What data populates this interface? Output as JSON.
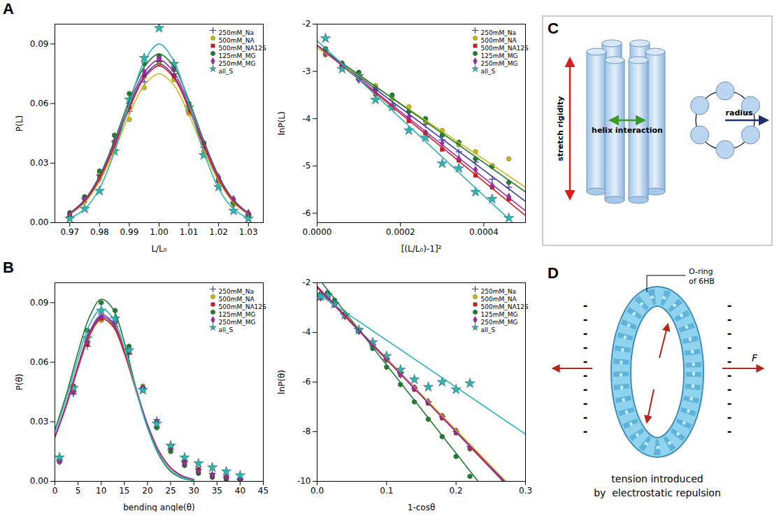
{
  "chart_data": [
    {
      "panel": "A",
      "type": "scatter",
      "x_label": "L/L₀",
      "y_label": "P(L)",
      "xlim": [
        0.965,
        1.035
      ],
      "xticks": [
        0.97,
        0.98,
        0.99,
        {
          "value": 1,
          "label": "1.00"
        },
        1.01,
        1.02,
        1.03
      ],
      "ylim": [
        0,
        0.1
      ],
      "yticks": [
        {
          "value": 0,
          "label": "0.00"
        },
        0.03,
        0.06,
        0.09
      ],
      "legend": "top-right",
      "x": [
        0.97,
        0.975,
        0.98,
        0.985,
        0.99,
        0.995,
        1,
        1.005,
        1.01,
        1.015,
        1.02,
        1.025,
        1.03
      ],
      "fit_x": [
        0.97,
        0.975,
        0.98,
        0.985,
        0.99,
        0.995,
        1,
        1.005,
        1.01,
        1.015,
        1.02,
        1.025,
        1.03
      ],
      "series": [
        {
          "name": "250mM_Na",
          "color": "#3b3bb0",
          "marker": "plus",
          "values": [
            0.003,
            0.012,
            0.024,
            0.041,
            0.056,
            0.071,
            0.081,
            0.075,
            0.057,
            0.038,
            0.021,
            0.01,
            0.004
          ],
          "fit_values": [
            0.0045,
            0.0108,
            0.0222,
            0.039,
            0.058,
            0.0738,
            0.08,
            0.0738,
            0.058,
            0.039,
            0.0222,
            0.0108,
            0.0045
          ]
        },
        {
          "name": "500mM_NA",
          "color": "#c9bd10",
          "marker": "circle",
          "values": [
            0.004,
            0.013,
            0.025,
            0.038,
            0.052,
            0.068,
            0.08,
            0.072,
            0.055,
            0.036,
            0.022,
            0.009,
            0.003
          ],
          "fit_values": [
            0.0042,
            0.0101,
            0.0209,
            0.0365,
            0.0545,
            0.0692,
            0.075,
            0.0692,
            0.0545,
            0.0365,
            0.0209,
            0.0101,
            0.0042
          ]
        },
        {
          "name": "500mM_NA12S",
          "color": "#e3141c",
          "marker": "square",
          "values": [
            0.003,
            0.011,
            0.023,
            0.04,
            0.058,
            0.074,
            0.082,
            0.074,
            0.056,
            0.04,
            0.021,
            0.011,
            0.004
          ],
          "fit_values": [
            0.0044,
            0.0107,
            0.022,
            0.0385,
            0.0574,
            0.0729,
            0.079,
            0.0729,
            0.0574,
            0.0385,
            0.022,
            0.0107,
            0.0044
          ]
        },
        {
          "name": "125mM_MG",
          "color": "#1e7d32",
          "marker": "hexagon",
          "values": [
            0.005,
            0.013,
            0.026,
            0.044,
            0.065,
            0.08,
            0.084,
            0.077,
            0.06,
            0.04,
            0.022,
            0.01,
            0.004
          ],
          "fit_values": [
            0.0048,
            0.0115,
            0.0236,
            0.0414,
            0.0617,
            0.0785,
            0.085,
            0.0785,
            0.0617,
            0.0414,
            0.0236,
            0.0115,
            0.0048
          ]
        },
        {
          "name": "250mM_MG",
          "color": "#9b2fa8",
          "marker": "diamond",
          "values": [
            0.004,
            0.012,
            0.022,
            0.041,
            0.06,
            0.076,
            0.083,
            0.078,
            0.058,
            0.04,
            0.023,
            0.012,
            0.005
          ],
          "fit_values": [
            0.0046,
            0.0111,
            0.0228,
            0.0399,
            0.0595,
            0.0757,
            0.082,
            0.0757,
            0.0595,
            0.0399,
            0.0228,
            0.0111,
            0.0046
          ]
        },
        {
          "name": "all_S",
          "color": "#2bb5b5",
          "marker": "star",
          "values": [
            0.002,
            0.007,
            0.016,
            0.036,
            0.062,
            0.083,
            0.098,
            0.08,
            0.058,
            0.034,
            0.018,
            0.006,
            0.002
          ],
          "fit_values": [
            0.0022,
            0.0068,
            0.0172,
            0.0356,
            0.0596,
            0.0812,
            0.09,
            0.0812,
            0.0596,
            0.0356,
            0.0172,
            0.0068,
            0.0022
          ]
        }
      ]
    },
    {
      "panel": "A",
      "type": "scatter",
      "x_label": "[(L/L₀)-1]²",
      "y_label": "lnP(L)",
      "xlim": [
        0,
        0.0005
      ],
      "xticks": [
        {
          "value": 0,
          "label": "0.0000"
        },
        {
          "value": 0.0002,
          "label": "0.0002"
        },
        {
          "value": 0.0004,
          "label": "0.0004"
        }
      ],
      "ylim": [
        -6.2,
        -2
      ],
      "yticks": [
        -2,
        -3,
        -4,
        -5,
        -6
      ],
      "legend": "top-right",
      "x": [
        2e-05,
        6e-05,
        0.0001,
        0.00014,
        0.00018,
        0.00022,
        0.00026,
        0.0003,
        0.00034,
        0.00038,
        0.00042,
        0.00046
      ],
      "fit_x": [
        0,
        0.0005
      ],
      "series": [
        {
          "name": "250mM_Na",
          "color": "#3b3bb0",
          "marker": "plus",
          "values": [
            -2.55,
            -2.88,
            -3.08,
            -3.4,
            -3.6,
            -3.95,
            -4.12,
            -4.45,
            -4.7,
            -4.92,
            -5.28,
            -5.45
          ],
          "fit_values": [
            -2.45,
            -5.75
          ]
        },
        {
          "name": "500mM_NA",
          "color": "#c9bd10",
          "marker": "circle",
          "values": [
            -2.65,
            -2.82,
            -3.12,
            -3.3,
            -3.58,
            -3.75,
            -4.06,
            -4.25,
            -4.55,
            -4.7,
            -5.02,
            -4.85
          ],
          "fit_values": [
            -2.5,
            -5.45
          ]
        },
        {
          "name": "500mM_NA12S",
          "color": "#e3141c",
          "marker": "square",
          "values": [
            -2.6,
            -2.9,
            -3.15,
            -3.48,
            -3.72,
            -4.05,
            -4.3,
            -4.65,
            -4.88,
            -5.2,
            -5.45,
            -5.7
          ],
          "fit_values": [
            -2.45,
            -6.05
          ]
        },
        {
          "name": "125mM_MG",
          "color": "#1e7d32",
          "marker": "hexagon",
          "values": [
            -2.52,
            -2.85,
            -3.02,
            -3.35,
            -3.5,
            -3.85,
            -4.0,
            -4.35,
            -4.5,
            -4.85,
            -5.0,
            -5.35
          ],
          "fit_values": [
            -2.45,
            -5.55
          ]
        },
        {
          "name": "250mM_MG",
          "color": "#9b2fa8",
          "marker": "diamond",
          "values": [
            -2.62,
            -2.85,
            -3.18,
            -3.4,
            -3.75,
            -3.97,
            -4.3,
            -4.52,
            -4.85,
            -5.08,
            -5.42,
            -5.65
          ],
          "fit_values": [
            -2.45,
            -5.95
          ]
        },
        {
          "name": "all_S",
          "color": "#2bb5b5",
          "marker": "star",
          "values": [
            -2.3,
            -2.95,
            -3.1,
            -3.6,
            -3.75,
            -4.25,
            -4.4,
            -4.95,
            -5.05,
            -5.55,
            -5.7,
            -6.1
          ],
          "fit_values": [
            -2.35,
            -6.45
          ]
        }
      ]
    },
    {
      "panel": "B",
      "type": "scatter",
      "x_label": "bending angle(θ)",
      "y_label": "P(θ)",
      "xlim": [
        0,
        45
      ],
      "xticks": [
        0,
        5,
        10,
        15,
        20,
        25,
        30,
        35,
        40,
        45
      ],
      "ylim": [
        0,
        0.1
      ],
      "yticks": [
        {
          "value": 0,
          "label": "0.00"
        },
        0.03,
        0.06,
        0.09
      ],
      "legend": "top-right",
      "x": [
        1,
        4,
        7,
        10,
        13,
        16,
        19,
        22,
        25,
        28,
        31,
        34,
        37,
        40
      ],
      "fit_x": [
        0,
        2.5,
        5,
        7.5,
        10,
        12.5,
        15,
        17.5,
        20,
        22.5,
        25,
        27.5,
        30
      ],
      "series": [
        {
          "name": "250mM_Na",
          "color": "#3b3bb0",
          "marker": "plus",
          "values": [
            0.011,
            0.044,
            0.068,
            0.082,
            0.078,
            0.064,
            0.047,
            0.031,
            0.018,
            0.01,
            0.006,
            0.004,
            0.002,
            0.001
          ],
          "fit_values": [
            0.0223,
            0.0388,
            0.0579,
            0.0745,
            0.0828,
            0.0792,
            0.0652,
            0.0463,
            0.0284,
            0.0149,
            0.0068,
            0.0027,
            0.0009
          ]
        },
        {
          "name": "500mM_NA",
          "color": "#c9bd10",
          "marker": "circle",
          "values": [
            0.01,
            0.046,
            0.07,
            0.081,
            0.079,
            0.066,
            0.048,
            0.03,
            0.017,
            0.009,
            0.005,
            0.003,
            0.002,
            0.001
          ],
          "fit_values": [
            0.0221,
            0.0383,
            0.0572,
            0.0736,
            0.0818,
            0.0782,
            0.0645,
            0.0458,
            0.028,
            0.0148,
            0.0067,
            0.0026,
            0.0009
          ]
        },
        {
          "name": "500mM_NA12S",
          "color": "#e3141c",
          "marker": "square",
          "values": [
            0.01,
            0.045,
            0.069,
            0.082,
            0.08,
            0.065,
            0.047,
            0.03,
            0.017,
            0.01,
            0.006,
            0.003,
            0.002,
            0.001
          ],
          "fit_values": [
            0.0221,
            0.0383,
            0.0572,
            0.0736,
            0.0818,
            0.0782,
            0.0645,
            0.0458,
            0.028,
            0.0148,
            0.0067,
            0.0026,
            0.0009
          ]
        },
        {
          "name": "125mM_MG",
          "color": "#1e7d32",
          "marker": "hexagon",
          "values": [
            0.011,
            0.048,
            0.076,
            0.09,
            0.086,
            0.068,
            0.046,
            0.027,
            0.015,
            0.008,
            0.004,
            0.002,
            0.001,
            0.0005
          ],
          "fit_values": [
            0.026,
            0.044,
            0.065,
            0.083,
            0.0917,
            0.087,
            0.07,
            0.047,
            0.027,
            0.013,
            0.005,
            0.0016,
            0.0004
          ]
        },
        {
          "name": "250mM_MG",
          "color": "#9b2fa8",
          "marker": "diamond",
          "values": [
            0.01,
            0.045,
            0.07,
            0.083,
            0.081,
            0.066,
            0.047,
            0.03,
            0.017,
            0.009,
            0.005,
            0.003,
            0.002,
            0.001
          ],
          "fit_values": [
            0.0226,
            0.0392,
            0.0586,
            0.0754,
            0.0837,
            0.0801,
            0.066,
            0.0469,
            0.0287,
            0.0151,
            0.0069,
            0.0027,
            0.0009
          ]
        },
        {
          "name": "all_S",
          "color": "#2bb5b5",
          "marker": "star",
          "values": [
            0.012,
            0.047,
            0.072,
            0.086,
            0.082,
            0.066,
            0.046,
            0.029,
            0.018,
            0.012,
            0.009,
            0.007,
            0.005,
            0.003
          ],
          "fit_values": [
            0.025,
            0.042,
            0.062,
            0.079,
            0.0868,
            0.0825,
            0.067,
            0.046,
            0.027,
            0.0135,
            0.0055,
            0.0019,
            0.0005
          ]
        }
      ]
    },
    {
      "panel": "B",
      "type": "scatter",
      "x_label": "1-cosθ",
      "y_label": "lnP(θ)",
      "xlim": [
        0,
        0.3
      ],
      "xticks": [
        {
          "value": 0,
          "label": "0.0"
        },
        0.1,
        0.2,
        0.3
      ],
      "ylim": [
        -10,
        -2
      ],
      "yticks": [
        -2,
        -4,
        -6,
        -8,
        -10
      ],
      "legend": "top-right",
      "x": [
        0.005,
        0.015,
        0.025,
        0.04,
        0.06,
        0.08,
        0.1,
        0.12,
        0.14,
        0.16,
        0.18,
        0.2,
        0.22
      ],
      "fit_x": [
        0,
        0.3
      ],
      "series": [
        {
          "name": "250mM_Na",
          "color": "#3b3bb0",
          "marker": "plus",
          "values": [
            -2.55,
            -2.55,
            -2.85,
            -3.3,
            -3.95,
            -4.5,
            -5.05,
            -5.6,
            -6.25,
            -6.8,
            -7.4,
            -8.0,
            -8.6
          ],
          "fit_values": [
            -2.15,
            -10.87
          ]
        },
        {
          "name": "500mM_NA",
          "color": "#c9bd10",
          "marker": "circle",
          "values": [
            -2.6,
            -2.5,
            -2.85,
            -3.35,
            -3.9,
            -4.45,
            -5.1,
            -5.65,
            -6.2,
            -6.85,
            -7.35,
            -7.95,
            -8.7
          ],
          "fit_values": [
            -2.2,
            -10.8
          ]
        },
        {
          "name": "500mM_NA12S",
          "color": "#e3141c",
          "marker": "square",
          "values": [
            -2.6,
            -2.55,
            -2.9,
            -3.3,
            -3.9,
            -4.55,
            -5.05,
            -5.7,
            -6.3,
            -6.85,
            -7.45,
            -8.05,
            -8.65
          ],
          "fit_values": [
            -2.15,
            -10.95
          ]
        },
        {
          "name": "125mM_MG",
          "color": "#1e7d32",
          "marker": "hexagon",
          "values": [
            -2.45,
            -2.4,
            -2.7,
            -3.25,
            -3.95,
            -4.65,
            -5.4,
            -6.1,
            -6.8,
            -7.5,
            -8.2,
            -9.0,
            -9.8
          ],
          "fit_values": [
            -1.75,
            -12.43
          ]
        },
        {
          "name": "250mM_MG",
          "color": "#9b2fa8",
          "marker": "diamond",
          "values": [
            -2.6,
            -2.5,
            -2.85,
            -3.35,
            -3.95,
            -4.5,
            -5.1,
            -5.7,
            -6.25,
            -6.8,
            -7.4,
            -8.0,
            -8.65
          ],
          "fit_values": [
            -2.2,
            -10.9
          ]
        },
        {
          "name": "all_S",
          "color": "#2bb5b5",
          "marker": "star",
          "values": [
            -2.55,
            -2.5,
            -2.85,
            -3.3,
            -3.9,
            -4.4,
            -4.95,
            -5.5,
            -5.9,
            -6.2,
            -6.0,
            -6.3,
            -6.05
          ],
          "fit_values": [
            -2.42,
            -8.1
          ]
        }
      ]
    }
  ],
  "diagrams": {
    "C": {
      "panel": "C",
      "stretch_label": "stretch rigidity",
      "helix_label": "helix interaction",
      "radius_label": "radius"
    },
    "D": {
      "panel": "D",
      "ring_label": [
        "O-ring",
        "of 6HB"
      ],
      "force_label": "F",
      "charge_symbol": "-",
      "caption": [
        "tension introduced",
        "by  electrostatic repulsion"
      ]
    }
  }
}
